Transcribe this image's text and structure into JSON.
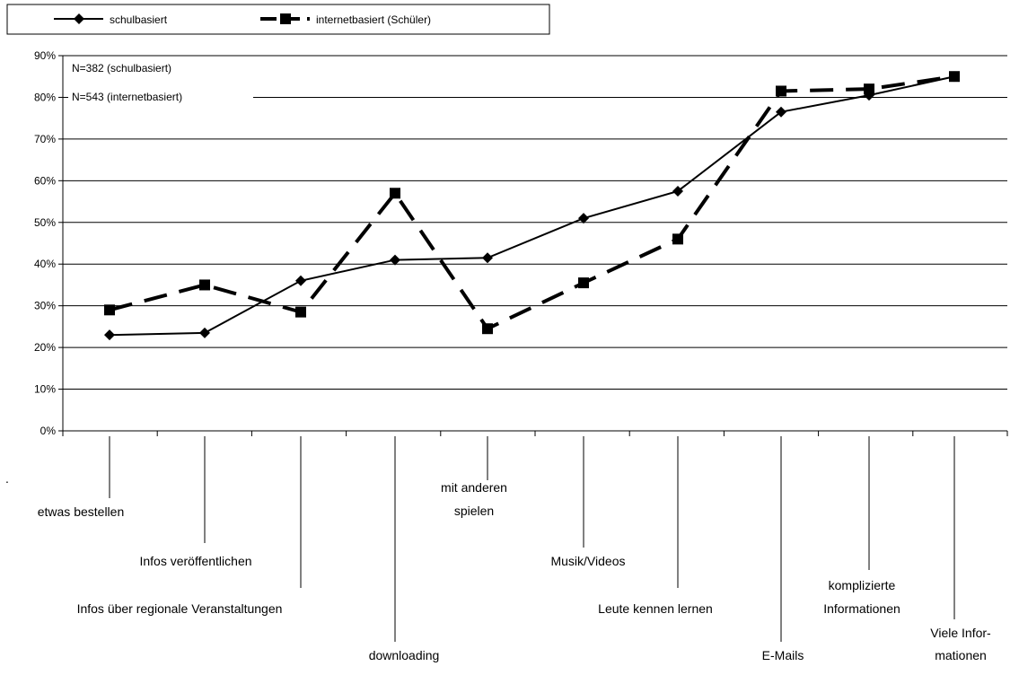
{
  "chart_data": {
    "type": "line",
    "annotations": [
      "N=382 (schulbasiert)",
      "N=543 (internetbasiert)"
    ],
    "footnote": ".",
    "categories": [
      "etwas bestellen",
      "Infos veröffentlichen",
      "Infos über regionale Veranstaltungen",
      "downloading",
      "mit anderen\nspielen",
      "Musik/Videos",
      "Leute kennen lernen",
      "E-Mails",
      "komplizierte\nInformationen",
      "Viele Infor-\nmationen"
    ],
    "series": [
      {
        "name": "schulbasiert",
        "color": "#000000",
        "marker": "diamond",
        "dash": "solid",
        "values": [
          23,
          23.5,
          36,
          41,
          41.5,
          51,
          57.5,
          76.5,
          80.5,
          85
        ]
      },
      {
        "name": "internetbasiert (Schüler)",
        "color": "#000000",
        "marker": "square",
        "dash": "dashed",
        "values": [
          29,
          35,
          28.5,
          57,
          24.5,
          35.5,
          46,
          81.5,
          82,
          85
        ]
      }
    ],
    "ylim": [
      0,
      90
    ],
    "yticks": [
      {
        "value": 0,
        "label": "0%"
      },
      {
        "value": 10,
        "label": "10%"
      },
      {
        "value": 20,
        "label": "20%"
      },
      {
        "value": 30,
        "label": "30%"
      },
      {
        "value": 40,
        "label": "40%"
      },
      {
        "value": 50,
        "label": "50%"
      },
      {
        "value": 60,
        "label": "60%"
      },
      {
        "value": 70,
        "label": "70%"
      },
      {
        "value": 80,
        "label": "80%"
      },
      {
        "value": 90,
        "label": "90%"
      }
    ],
    "grid": true,
    "legend": "top-left"
  }
}
